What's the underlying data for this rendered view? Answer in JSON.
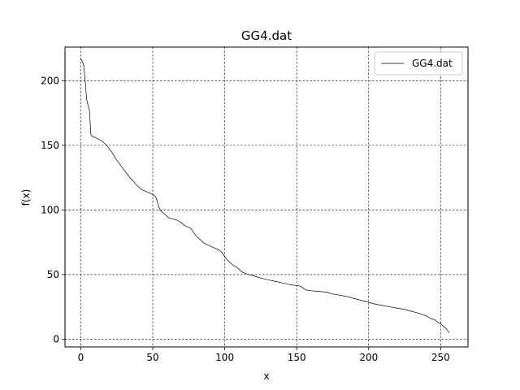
{
  "chart_data": {
    "type": "line",
    "title": "GG4.dat",
    "xlabel": "x",
    "ylabel": "f(x)",
    "xlim": [
      -11,
      269
    ],
    "ylim": [
      -6,
      226
    ],
    "xticks": [
      0,
      50,
      100,
      150,
      200,
      250
    ],
    "yticks": [
      0,
      50,
      100,
      150,
      200
    ],
    "grid": true,
    "grid_style": "dashed",
    "legend_position": "top-right",
    "series": [
      {
        "name": "GG4.dat",
        "color": "#000000",
        "points": [
          [
            0,
            217
          ],
          [
            1,
            215
          ],
          [
            2,
            212
          ],
          [
            3,
            200
          ],
          [
            4,
            186
          ],
          [
            5,
            181
          ],
          [
            6,
            177
          ],
          [
            7,
            158
          ],
          [
            8,
            157
          ],
          [
            10,
            156
          ],
          [
            12,
            155
          ],
          [
            15,
            153
          ],
          [
            18,
            150
          ],
          [
            20,
            147
          ],
          [
            22,
            144
          ],
          [
            24,
            140
          ],
          [
            26,
            137
          ],
          [
            28,
            134
          ],
          [
            30,
            131
          ],
          [
            32,
            128
          ],
          [
            34,
            125
          ],
          [
            36,
            123
          ],
          [
            38,
            120
          ],
          [
            40,
            118
          ],
          [
            42,
            116
          ],
          [
            44,
            115
          ],
          [
            46,
            114
          ],
          [
            48,
            113
          ],
          [
            50,
            112
          ],
          [
            52,
            110
          ],
          [
            53,
            107
          ],
          [
            54,
            103
          ],
          [
            55,
            100
          ],
          [
            57,
            98
          ],
          [
            59,
            96
          ],
          [
            61,
            94
          ],
          [
            64,
            93
          ],
          [
            67,
            92
          ],
          [
            70,
            90
          ],
          [
            72,
            88
          ],
          [
            74,
            87
          ],
          [
            76,
            86
          ],
          [
            77,
            85
          ],
          [
            78,
            83
          ],
          [
            80,
            80
          ],
          [
            82,
            78
          ],
          [
            84,
            76
          ],
          [
            86,
            74
          ],
          [
            88,
            73
          ],
          [
            90,
            72
          ],
          [
            92,
            71
          ],
          [
            94,
            70
          ],
          [
            96,
            69
          ],
          [
            98,
            67
          ],
          [
            100,
            64
          ],
          [
            102,
            61
          ],
          [
            104,
            59
          ],
          [
            106,
            57
          ],
          [
            108,
            56
          ],
          [
            110,
            54
          ],
          [
            112,
            52
          ],
          [
            114,
            51
          ],
          [
            117,
            50
          ],
          [
            120,
            49
          ],
          [
            123,
            48
          ],
          [
            126,
            47
          ],
          [
            130,
            46
          ],
          [
            134,
            45
          ],
          [
            138,
            44
          ],
          [
            142,
            43
          ],
          [
            146,
            42
          ],
          [
            150,
            41.5
          ],
          [
            153,
            41
          ],
          [
            155,
            39
          ],
          [
            157,
            38
          ],
          [
            160,
            37.5
          ],
          [
            165,
            37
          ],
          [
            170,
            36.5
          ],
          [
            175,
            35
          ],
          [
            180,
            34
          ],
          [
            185,
            33
          ],
          [
            190,
            31.5
          ],
          [
            195,
            30
          ],
          [
            200,
            28.5
          ],
          [
            205,
            27
          ],
          [
            210,
            26
          ],
          [
            215,
            25
          ],
          [
            220,
            24
          ],
          [
            225,
            23
          ],
          [
            230,
            21.5
          ],
          [
            235,
            20
          ],
          [
            240,
            18
          ],
          [
            243,
            16
          ],
          [
            246,
            15
          ],
          [
            248,
            13
          ],
          [
            250,
            12
          ],
          [
            252,
            10
          ],
          [
            254,
            8
          ],
          [
            256,
            5
          ]
        ]
      }
    ]
  }
}
